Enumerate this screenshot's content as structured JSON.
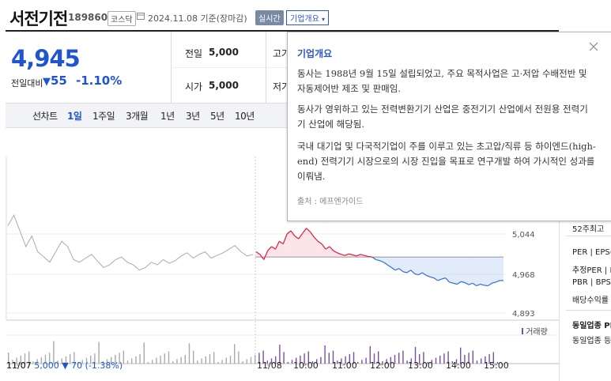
{
  "header": {
    "title": "서전기전",
    "code": "189860",
    "market": "코스닥",
    "date": "2024.11.08 기준(장마감)",
    "realtime_badge": "실시간",
    "overview_button": "기업개요"
  },
  "quote": {
    "price": "4,945",
    "change_label": "전일대비",
    "change_value": "55",
    "change_pct": "-1.10%",
    "prev_close_label": "전일",
    "prev_close": "5,000",
    "open_label": "시가",
    "open": "5,000",
    "high_label_partial": "고가",
    "low_label_partial": "저가"
  },
  "tabs": {
    "label": "선차트",
    "items": [
      "1일",
      "1주일",
      "3개월",
      "1년",
      "3년",
      "5년",
      "10년"
    ],
    "selected": "1일"
  },
  "popup": {
    "title": "기업개요",
    "paragraphs": [
      "동사는 1988년 9월 15일 설립되었고, 주요 목적사업은 고·저압 수배전반 및 자동제어반 제조 및 판매임.",
      "동사가 영위하고 있는 전력변환기기 산업은 중전기기 산업에서 전원용 전력기기 산업에 해당됨.",
      "국내 대기업 및 다국적기업이 주를 이루고 있는 초고압/직류 등 하이엔드(high-end) 전력기기 시장으로의 시장 진입을 목표로 연구개발 하여 가시적인 성과를 이뤄냄."
    ],
    "source": "출처 : 에프엔가이드"
  },
  "right_col": {
    "items": [
      "52주최고",
      "PER",
      "EPS(",
      "추정PER",
      "E",
      "PBR",
      "BPS(",
      "배당수익률",
      "동일업종 PE",
      "동일업종 등"
    ]
  },
  "chart_data": {
    "type": "line",
    "y_ticks": [
      "5,044",
      "4,968",
      "4,893"
    ],
    "x_ticks": [
      "11/07",
      "11/08",
      "10:00",
      "11:00",
      "12:00",
      "13:00",
      "14:00",
      "15:00"
    ],
    "reference": 5000,
    "volume_legend": "거래량",
    "prev_day_footer": {
      "date": "11/07",
      "close": "5,000",
      "change": "▼ 70",
      "pct": "(-1.38%)"
    },
    "series": [
      {
        "values": [
          5010,
          5005,
          4995,
          5012,
          5020,
          5015,
          5030,
          5025,
          5044,
          5050,
          5040,
          5035,
          5045,
          5055,
          5048,
          5038,
          5030,
          5025,
          5015,
          5020,
          5012,
          5008,
          5005,
          5003,
          5006,
          5004,
          5002,
          5005,
          5003,
          5001,
          5000,
          4995,
          4993,
          4990,
          4985,
          4980,
          4975,
          4978,
          4972,
          4970,
          4975,
          4968,
          4966,
          4970,
          4965,
          4962,
          4960,
          4955,
          4958,
          4960,
          4952,
          4950,
          4948,
          4953,
          4951,
          4947,
          4950,
          4945,
          4948,
          4946,
          4945,
          4950,
          4952,
          4955,
          4955
        ]
      },
      {
        "values": [
          5060,
          5080,
          5050,
          5020,
          5040,
          5010,
          5000,
          4990,
          5010,
          5030,
          5020,
          4995,
          4990,
          4998,
          5005,
          4992,
          4980,
          4985,
          4995,
          5000,
          4990,
          4985,
          4975,
          4980,
          4990,
          4985,
          4995,
          4988,
          4993,
          5002,
          5008,
          4998,
          5005,
          5010,
          4998,
          5003,
          5008,
          5015,
          5022,
          5010,
          5002,
          5005
        ]
      }
    ]
  }
}
